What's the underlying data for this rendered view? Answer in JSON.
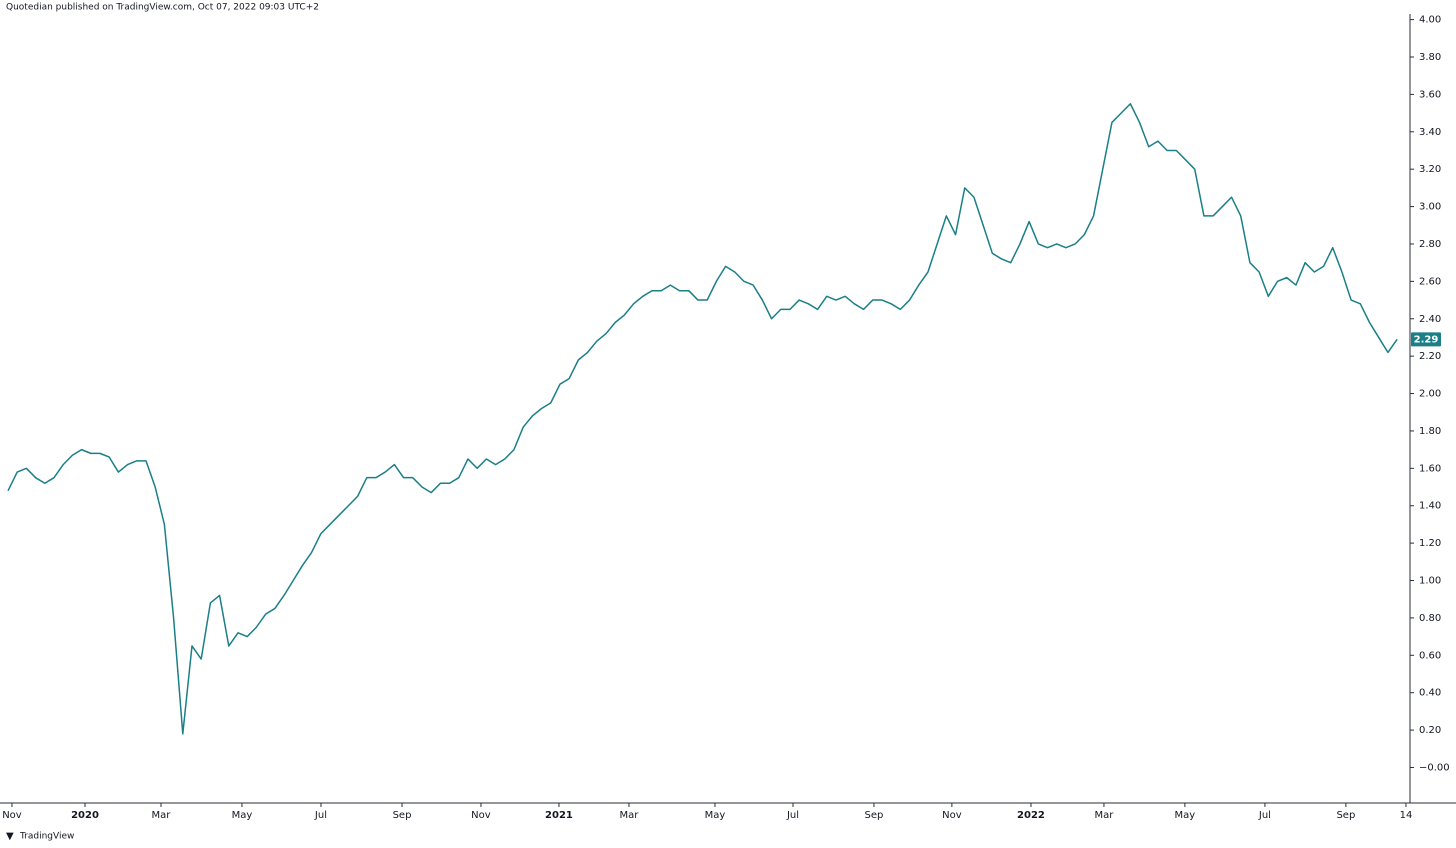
{
  "chart_data": {
    "type": "line",
    "header": "Quotedian published on TradingView.com, Oct 07, 2022 09:03 UTC+2",
    "footer": "TradingView",
    "color": "#1a7f87",
    "values": [
      1.48,
      1.58,
      1.6,
      1.55,
      1.52,
      1.55,
      1.62,
      1.67,
      1.7,
      1.68,
      1.68,
      1.66,
      1.58,
      1.62,
      1.64,
      1.64,
      1.5,
      1.3,
      0.8,
      0.18,
      0.65,
      0.58,
      0.88,
      0.92,
      0.65,
      0.72,
      0.7,
      0.75,
      0.82,
      0.85,
      0.92,
      1.0,
      1.08,
      1.15,
      1.25,
      1.3,
      1.35,
      1.4,
      1.45,
      1.55,
      1.55,
      1.58,
      1.62,
      1.55,
      1.55,
      1.5,
      1.47,
      1.52,
      1.52,
      1.55,
      1.65,
      1.6,
      1.65,
      1.62,
      1.65,
      1.7,
      1.82,
      1.88,
      1.92,
      1.95,
      2.05,
      2.08,
      2.18,
      2.22,
      2.28,
      2.32,
      2.38,
      2.42,
      2.48,
      2.52,
      2.55,
      2.55,
      2.58,
      2.55,
      2.55,
      2.5,
      2.5,
      2.6,
      2.68,
      2.65,
      2.6,
      2.58,
      2.5,
      2.4,
      2.45,
      2.45,
      2.5,
      2.48,
      2.45,
      2.52,
      2.5,
      2.52,
      2.48,
      2.45,
      2.5,
      2.5,
      2.48,
      2.45,
      2.5,
      2.58,
      2.65,
      2.8,
      2.95,
      2.85,
      3.1,
      3.05,
      2.9,
      2.75,
      2.72,
      2.7,
      2.8,
      2.92,
      2.8,
      2.78,
      2.8,
      2.78,
      2.8,
      2.85,
      2.95,
      3.2,
      3.45,
      3.5,
      3.55,
      3.45,
      3.32,
      3.35,
      3.3,
      3.3,
      3.25,
      3.2,
      2.95,
      2.95,
      3.0,
      3.05,
      2.95,
      2.7,
      2.65,
      2.52,
      2.6,
      2.62,
      2.58,
      2.7,
      2.65,
      2.68,
      2.78,
      2.65,
      2.5,
      2.48,
      2.38,
      2.3,
      2.22,
      2.29
    ],
    "last_value": 2.29,
    "xlim": [
      -0.87,
      152.4
    ],
    "xticks": [
      {
        "value": 0.43,
        "label": "Nov"
      },
      {
        "value": 8.37,
        "label": "2020"
      },
      {
        "value": 16.63,
        "label": "Mar"
      },
      {
        "value": 25.43,
        "label": "May"
      },
      {
        "value": 34.02,
        "label": "Jul"
      },
      {
        "value": 42.83,
        "label": "Sep"
      },
      {
        "value": 51.41,
        "label": "Nov"
      },
      {
        "value": 59.89,
        "label": "2021"
      },
      {
        "value": 67.5,
        "label": "Mar"
      },
      {
        "value": 76.85,
        "label": "May"
      },
      {
        "value": 85.33,
        "label": "Jul"
      },
      {
        "value": 94.13,
        "label": "Sep"
      },
      {
        "value": 102.6,
        "label": "Nov"
      },
      {
        "value": 111.2,
        "label": "2022"
      },
      {
        "value": 119.13,
        "label": "Mar"
      },
      {
        "value": 127.93,
        "label": "May"
      },
      {
        "value": 136.63,
        "label": "Jul"
      },
      {
        "value": 145.43,
        "label": "Sep"
      },
      {
        "value": 151.96,
        "label": "14"
      }
    ],
    "ylim": [
      -0.19,
      4.03
    ],
    "yticks": [
      {
        "value": 4,
        "label": "4.00"
      },
      {
        "value": 3.8,
        "label": "3.80"
      },
      {
        "value": 3.6,
        "label": "3.60"
      },
      {
        "value": 3.4,
        "label": "3.40"
      },
      {
        "value": 3.2,
        "label": "3.20"
      },
      {
        "value": 3,
        "label": "3.00"
      },
      {
        "value": 2.8,
        "label": "2.80"
      },
      {
        "value": 2.6,
        "label": "2.60"
      },
      {
        "value": 2.4,
        "label": "2.40"
      },
      {
        "value": 2.2,
        "label": "2.20"
      },
      {
        "value": 2,
        "label": "2.00"
      },
      {
        "value": 1.8,
        "label": "1.80"
      },
      {
        "value": 1.6,
        "label": "1.60"
      },
      {
        "value": 1.4,
        "label": "1.40"
      },
      {
        "value": 1.2,
        "label": "1.20"
      },
      {
        "value": 1,
        "label": "1.00"
      },
      {
        "value": 0.8,
        "label": "0.80"
      },
      {
        "value": 0.6,
        "label": "0.60"
      },
      {
        "value": 0.4,
        "label": "0.40"
      },
      {
        "value": 0.2,
        "label": "0.20"
      },
      {
        "value": 0,
        "label": "−0.00"
      }
    ]
  }
}
